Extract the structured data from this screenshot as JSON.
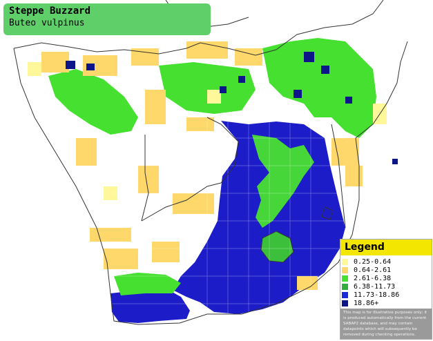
{
  "title": {
    "common_name": "Steppe Buzzard",
    "scientific_name": "Buteo vulpinus"
  },
  "legend": {
    "heading": "Legend",
    "items": [
      {
        "label": "0.25-0.64",
        "color": "#fef89a"
      },
      {
        "label": "0.64-2.61",
        "color": "#fed86a"
      },
      {
        "label": "2.61-6.38",
        "color": "#45e030"
      },
      {
        "label": "6.38-11.73",
        "color": "#2fae3c"
      },
      {
        "label": "11.73-18.86",
        "color": "#1a2ad8"
      },
      {
        "label": "18.86+",
        "color": "#0c1688"
      }
    ],
    "disclaimer": "This map is for illustrative purposes only; it is produced automatically from the current SABAP2 database, and may contain datapoints which will subsequently be removed during checking operations."
  },
  "colors": {
    "title_background": "#5fcf6a",
    "legend_header": "#f3e600",
    "disclaimer_background": "#9a9a9a",
    "borders": "#333333",
    "grid": "#ffffff"
  }
}
